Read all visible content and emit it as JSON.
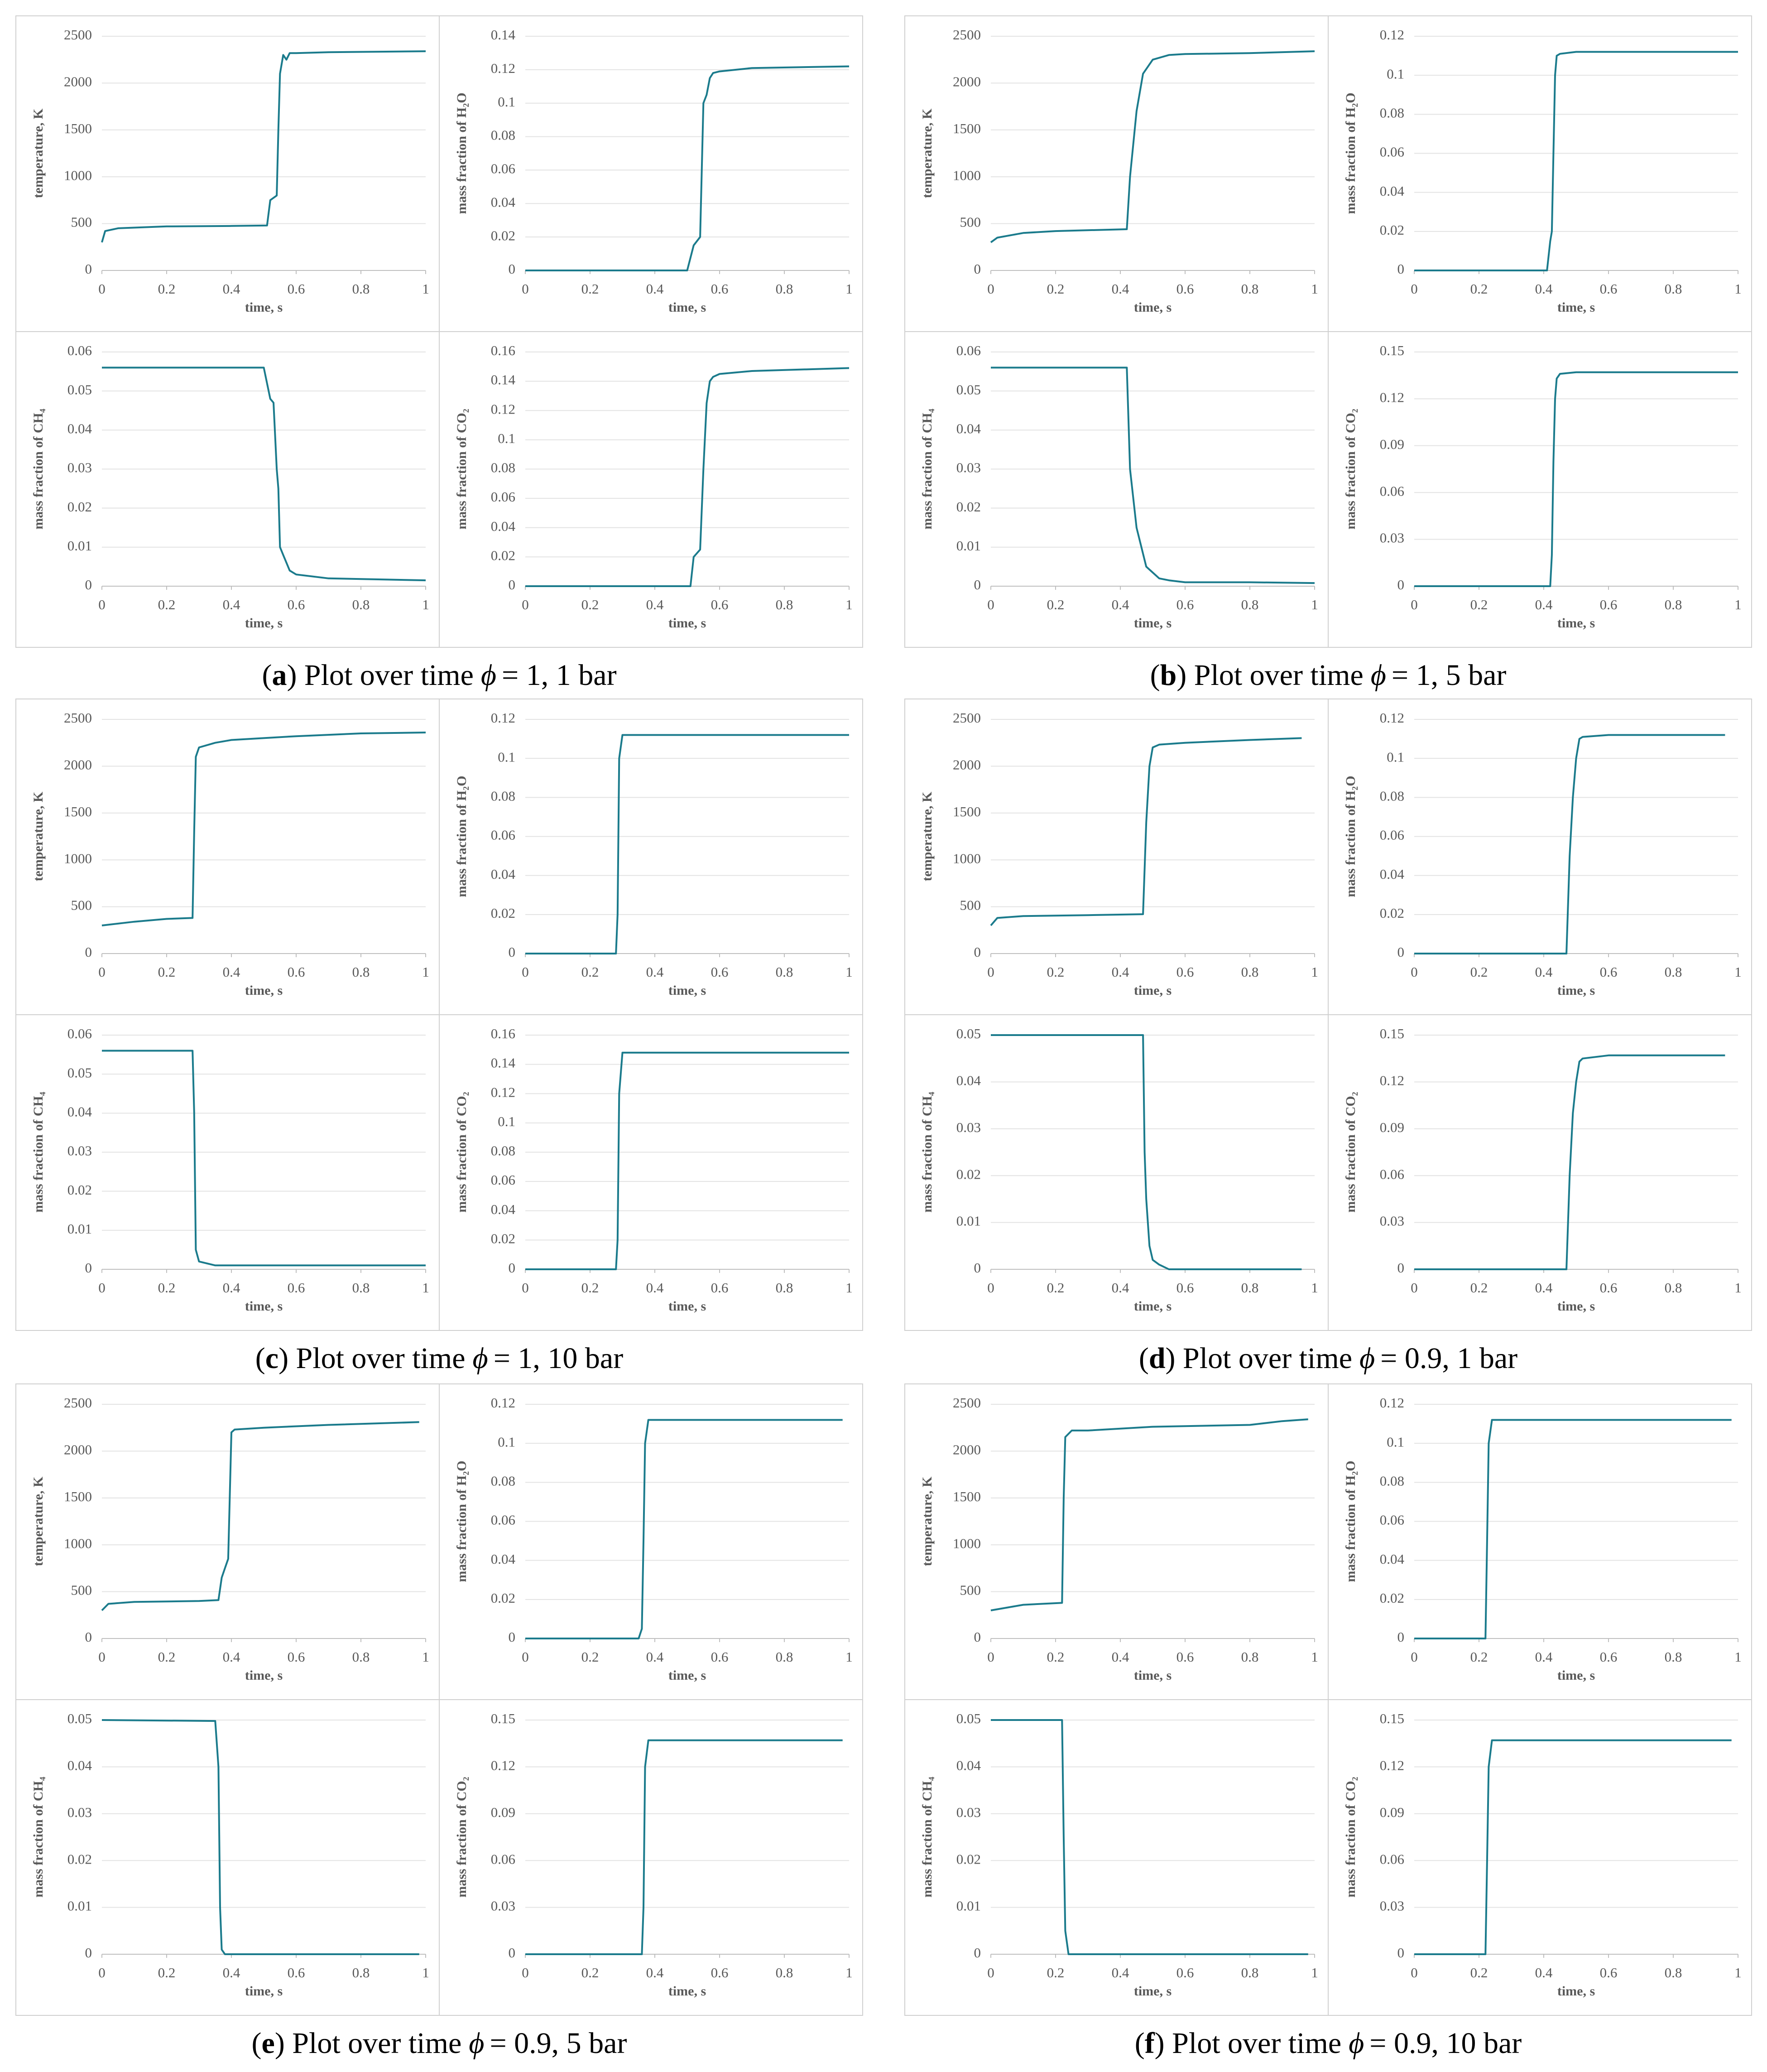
{
  "captions": [
    {
      "open": "(",
      "letter": "a",
      "text": ") Plot over time",
      "symbol": "ϕ",
      "condition": "= 1, 1 bar"
    },
    {
      "open": "(",
      "letter": "b",
      "text": ") Plot over time",
      "symbol": "ϕ",
      "condition": "= 1, 5 bar"
    },
    {
      "open": "(",
      "letter": "c",
      "text": ") Plot over time",
      "symbol": "ϕ",
      "condition": "= 1, 10 bar"
    },
    {
      "open": "(",
      "letter": "d",
      "text": ") Plot over time",
      "symbol": "ϕ",
      "condition": "= 0.9, 1 bar"
    },
    {
      "open": "(",
      "letter": "e",
      "text": ") Plot over time",
      "symbol": "ϕ",
      "condition": "= 0.9, 5 bar"
    },
    {
      "open": "(",
      "letter": "f",
      "text": ") Plot over time",
      "symbol": "ϕ",
      "condition": "= 0.9, 10 bar"
    }
  ],
  "chart_data": [
    {
      "type": "line",
      "xlabel": "time, s",
      "ylabel": "temperature, K",
      "color": "#1b7b8c",
      "grid": true,
      "x": [
        0,
        0.01,
        0.05,
        0.2,
        0.4,
        0.51,
        0.52,
        0.54,
        0.545,
        0.55,
        0.56,
        0.57,
        0.58,
        0.6,
        0.7,
        1
      ],
      "values": [
        300,
        420,
        450,
        470,
        475,
        480,
        750,
        800,
        1500,
        2100,
        2300,
        2250,
        2320,
        2320,
        2330,
        2340
      ],
      "xlim": [
        0,
        1
      ],
      "xticks": [
        0,
        0.2,
        0.4,
        0.6,
        0.8,
        1
      ],
      "ylim": [
        0,
        2500
      ],
      "yticks": [
        0,
        500,
        1000,
        1500,
        2000,
        2500
      ]
    },
    {
      "type": "line",
      "xlabel": "time, s",
      "ylabel": "mass fraction of H₂O",
      "color": "#1b7b8c",
      "grid": true,
      "x": [
        0,
        0.5,
        0.52,
        0.54,
        0.545,
        0.55,
        0.56,
        0.57,
        0.58,
        0.6,
        0.7,
        1
      ],
      "values": [
        0,
        0,
        0.015,
        0.02,
        0.06,
        0.1,
        0.105,
        0.115,
        0.118,
        0.119,
        0.121,
        0.122
      ],
      "xlim": [
        0,
        1
      ],
      "xticks": [
        0,
        0.2,
        0.4,
        0.6,
        0.8,
        1
      ],
      "ylim": [
        0,
        0.14
      ],
      "yticks": [
        0,
        0.02,
        0.04,
        0.06,
        0.08,
        0.1,
        0.12,
        0.14
      ]
    },
    {
      "type": "line",
      "xlabel": "time, s",
      "ylabel": "mass fraction of CH₄",
      "color": "#1b7b8c",
      "grid": true,
      "x": [
        0,
        0.5,
        0.52,
        0.53,
        0.54,
        0.545,
        0.55,
        0.56,
        0.58,
        0.6,
        0.7,
        1
      ],
      "values": [
        0.056,
        0.056,
        0.048,
        0.047,
        0.03,
        0.025,
        0.01,
        0.008,
        0.004,
        0.003,
        0.002,
        0.0015
      ],
      "xlim": [
        0,
        1
      ],
      "xticks": [
        0,
        0.2,
        0.4,
        0.6,
        0.8,
        1
      ],
      "ylim": [
        0,
        0.06
      ],
      "yticks": [
        0,
        0.01,
        0.02,
        0.03,
        0.04,
        0.05,
        0.06
      ]
    },
    {
      "type": "line",
      "xlabel": "time, s",
      "ylabel": "mass fraction of CO₂",
      "color": "#1b7b8c",
      "grid": true,
      "x": [
        0,
        0.51,
        0.52,
        0.54,
        0.55,
        0.56,
        0.57,
        0.58,
        0.6,
        0.7,
        1
      ],
      "values": [
        0,
        0,
        0.02,
        0.025,
        0.08,
        0.125,
        0.14,
        0.143,
        0.145,
        0.147,
        0.149
      ],
      "xlim": [
        0,
        1
      ],
      "xticks": [
        0,
        0.2,
        0.4,
        0.6,
        0.8,
        1
      ],
      "ylim": [
        0,
        0.16
      ],
      "yticks": [
        0,
        0.02,
        0.04,
        0.06,
        0.08,
        0.1,
        0.12,
        0.14,
        0.16
      ]
    },
    {
      "type": "line",
      "xlabel": "time, s",
      "ylabel": "temperature, K",
      "color": "#1b7b8c",
      "grid": true,
      "x": [
        0,
        0.02,
        0.1,
        0.2,
        0.42,
        0.43,
        0.45,
        0.47,
        0.5,
        0.55,
        0.6,
        0.8,
        1
      ],
      "values": [
        300,
        350,
        400,
        420,
        440,
        1000,
        1700,
        2100,
        2250,
        2300,
        2310,
        2320,
        2340
      ],
      "xlim": [
        0,
        1
      ],
      "xticks": [
        0,
        0.2,
        0.4,
        0.6,
        0.8,
        1
      ],
      "ylim": [
        0,
        2500
      ],
      "yticks": [
        0,
        500,
        1000,
        1500,
        2000,
        2500
      ]
    },
    {
      "type": "line",
      "xlabel": "time, s",
      "ylabel": "mass fraction of H₂O",
      "color": "#1b7b8c",
      "grid": true,
      "x": [
        0,
        0.41,
        0.42,
        0.425,
        0.43,
        0.435,
        0.44,
        0.45,
        0.5,
        1
      ],
      "values": [
        0,
        0,
        0.015,
        0.02,
        0.06,
        0.1,
        0.11,
        0.111,
        0.112,
        0.112
      ],
      "xlim": [
        0,
        1
      ],
      "xticks": [
        0,
        0.2,
        0.4,
        0.6,
        0.8,
        1
      ],
      "ylim": [
        0,
        0.12
      ],
      "yticks": [
        0,
        0.02,
        0.04,
        0.06,
        0.08,
        0.1,
        0.12
      ]
    },
    {
      "type": "line",
      "xlabel": "time, s",
      "ylabel": "mass fraction of CH₄",
      "color": "#1b7b8c",
      "grid": true,
      "x": [
        0,
        0.42,
        0.43,
        0.45,
        0.48,
        0.52,
        0.55,
        0.6,
        0.8,
        1
      ],
      "values": [
        0.056,
        0.056,
        0.03,
        0.015,
        0.005,
        0.002,
        0.0015,
        0.001,
        0.001,
        0.0008
      ],
      "xlim": [
        0,
        1
      ],
      "xticks": [
        0,
        0.2,
        0.4,
        0.6,
        0.8,
        1
      ],
      "ylim": [
        0,
        0.06
      ],
      "yticks": [
        0,
        0.01,
        0.02,
        0.03,
        0.04,
        0.05,
        0.06
      ]
    },
    {
      "type": "line",
      "xlabel": "time, s",
      "ylabel": "mass fraction of CO₂",
      "color": "#1b7b8c",
      "grid": true,
      "x": [
        0,
        0.42,
        0.425,
        0.43,
        0.435,
        0.44,
        0.45,
        0.5,
        1
      ],
      "values": [
        0,
        0,
        0.02,
        0.08,
        0.12,
        0.133,
        0.136,
        0.137,
        0.137
      ],
      "xlim": [
        0,
        1
      ],
      "xticks": [
        0,
        0.2,
        0.4,
        0.6,
        0.8,
        1
      ],
      "ylim": [
        0,
        0.15
      ],
      "yticks": [
        0,
        0.03,
        0.06,
        0.09,
        0.12,
        0.15
      ]
    },
    {
      "type": "line",
      "xlabel": "time, s",
      "ylabel": "temperature, K",
      "color": "#1b7b8c",
      "grid": true,
      "x": [
        0,
        0.1,
        0.2,
        0.28,
        0.285,
        0.29,
        0.3,
        0.35,
        0.4,
        0.6,
        0.8,
        1
      ],
      "values": [
        300,
        340,
        370,
        380,
        1300,
        2100,
        2200,
        2250,
        2280,
        2320,
        2350,
        2360
      ],
      "xlim": [
        0,
        1
      ],
      "xticks": [
        0,
        0.2,
        0.4,
        0.6,
        0.8,
        1
      ],
      "ylim": [
        0,
        2500
      ],
      "yticks": [
        0,
        500,
        1000,
        1500,
        2000,
        2500
      ]
    },
    {
      "type": "line",
      "xlabel": "time, s",
      "ylabel": "mass fraction of H₂O",
      "color": "#1b7b8c",
      "grid": true,
      "x": [
        0,
        0.28,
        0.285,
        0.29,
        0.3,
        1
      ],
      "values": [
        0,
        0,
        0.02,
        0.1,
        0.112,
        0.112
      ],
      "xlim": [
        0,
        1
      ],
      "xticks": [
        0,
        0.2,
        0.4,
        0.6,
        0.8,
        1
      ],
      "ylim": [
        0,
        0.12
      ],
      "yticks": [
        0,
        0.02,
        0.04,
        0.06,
        0.08,
        0.1,
        0.12
      ]
    },
    {
      "type": "line",
      "xlabel": "time, s",
      "ylabel": "mass fraction of CH₄",
      "color": "#1b7b8c",
      "grid": true,
      "x": [
        0,
        0.28,
        0.285,
        0.29,
        0.3,
        0.35,
        1
      ],
      "values": [
        0.056,
        0.056,
        0.04,
        0.005,
        0.002,
        0.001,
        0.001
      ],
      "xlim": [
        0,
        1
      ],
      "xticks": [
        0,
        0.2,
        0.4,
        0.6,
        0.8,
        1
      ],
      "ylim": [
        0,
        0.06
      ],
      "yticks": [
        0,
        0.01,
        0.02,
        0.03,
        0.04,
        0.05,
        0.06
      ]
    },
    {
      "type": "line",
      "xlabel": "time, s",
      "ylabel": "mass fraction of CO₂",
      "color": "#1b7b8c",
      "grid": true,
      "x": [
        0,
        0.28,
        0.285,
        0.29,
        0.3,
        1
      ],
      "values": [
        0,
        0,
        0.02,
        0.12,
        0.148,
        0.148
      ],
      "xlim": [
        0,
        1
      ],
      "xticks": [
        0,
        0.2,
        0.4,
        0.6,
        0.8,
        1
      ],
      "ylim": [
        0,
        0.16
      ],
      "yticks": [
        0,
        0.02,
        0.04,
        0.06,
        0.08,
        0.1,
        0.12,
        0.14,
        0.16
      ]
    },
    {
      "type": "line",
      "xlabel": "time, s",
      "ylabel": "temperature, K",
      "color": "#1b7b8c",
      "grid": true,
      "x": [
        0,
        0.02,
        0.1,
        0.3,
        0.47,
        0.48,
        0.49,
        0.5,
        0.52,
        0.6,
        0.8,
        0.96
      ],
      "values": [
        300,
        380,
        400,
        410,
        420,
        1400,
        2000,
        2200,
        2230,
        2250,
        2280,
        2300
      ],
      "xlim": [
        0,
        1
      ],
      "xticks": [
        0,
        0.2,
        0.4,
        0.6,
        0.8,
        1
      ],
      "ylim": [
        0,
        2500
      ],
      "yticks": [
        0,
        500,
        1000,
        1500,
        2000,
        2500
      ]
    },
    {
      "type": "line",
      "xlabel": "time, s",
      "ylabel": "mass fraction of H₂O",
      "color": "#1b7b8c",
      "grid": true,
      "x": [
        0,
        0.47,
        0.48,
        0.49,
        0.5,
        0.51,
        0.52,
        0.6,
        0.96
      ],
      "values": [
        0,
        0,
        0.05,
        0.08,
        0.1,
        0.11,
        0.111,
        0.112,
        0.112
      ],
      "xlim": [
        0,
        1
      ],
      "xticks": [
        0,
        0.2,
        0.4,
        0.6,
        0.8,
        1
      ],
      "ylim": [
        0,
        0.12
      ],
      "yticks": [
        0,
        0.02,
        0.04,
        0.06,
        0.08,
        0.1,
        0.12
      ]
    },
    {
      "type": "line",
      "xlabel": "time, s",
      "ylabel": "mass fraction of CH₄",
      "color": "#1b7b8c",
      "grid": true,
      "x": [
        0,
        0.47,
        0.475,
        0.48,
        0.49,
        0.5,
        0.52,
        0.55,
        0.96
      ],
      "values": [
        0.05,
        0.05,
        0.025,
        0.015,
        0.005,
        0.002,
        0.001,
        0,
        0
      ],
      "xlim": [
        0,
        1
      ],
      "xticks": [
        0,
        0.2,
        0.4,
        0.6,
        0.8,
        1
      ],
      "ylim": [
        0,
        0.05
      ],
      "yticks": [
        0,
        0.01,
        0.02,
        0.03,
        0.04,
        0.05
      ]
    },
    {
      "type": "line",
      "xlabel": "time, s",
      "ylabel": "mass fraction of CO₂",
      "color": "#1b7b8c",
      "grid": true,
      "x": [
        0,
        0.47,
        0.48,
        0.49,
        0.5,
        0.51,
        0.52,
        0.6,
        0.96
      ],
      "values": [
        0,
        0,
        0.06,
        0.1,
        0.12,
        0.133,
        0.135,
        0.137,
        0.137
      ],
      "xlim": [
        0,
        1
      ],
      "xticks": [
        0,
        0.2,
        0.4,
        0.6,
        0.8,
        1
      ],
      "ylim": [
        0,
        0.15
      ],
      "yticks": [
        0,
        0.03,
        0.06,
        0.09,
        0.12,
        0.15
      ]
    },
    {
      "type": "line",
      "xlabel": "time, s",
      "ylabel": "temperature, K",
      "color": "#1b7b8c",
      "grid": true,
      "x": [
        0,
        0.02,
        0.1,
        0.3,
        0.36,
        0.37,
        0.38,
        0.39,
        0.4,
        0.41,
        0.5,
        0.7,
        0.98
      ],
      "values": [
        300,
        370,
        390,
        400,
        410,
        650,
        750,
        850,
        2200,
        2230,
        2250,
        2280,
        2310
      ],
      "xlim": [
        0,
        1
      ],
      "xticks": [
        0,
        0.2,
        0.4,
        0.6,
        0.8,
        1
      ],
      "ylim": [
        0,
        2500
      ],
      "yticks": [
        0,
        500,
        1000,
        1500,
        2000,
        2500
      ]
    },
    {
      "type": "line",
      "xlabel": "time, s",
      "ylabel": "mass fraction of H₂O",
      "color": "#1b7b8c",
      "grid": true,
      "x": [
        0,
        0.35,
        0.36,
        0.365,
        0.37,
        0.38,
        0.98
      ],
      "values": [
        0,
        0,
        0.005,
        0.05,
        0.1,
        0.112,
        0.112
      ],
      "xlim": [
        0,
        1
      ],
      "xticks": [
        0,
        0.2,
        0.4,
        0.6,
        0.8,
        1
      ],
      "ylim": [
        0,
        0.12
      ],
      "yticks": [
        0,
        0.02,
        0.04,
        0.06,
        0.08,
        0.1,
        0.12
      ]
    },
    {
      "type": "line",
      "xlabel": "time, s",
      "ylabel": "mass fraction of CH₄",
      "color": "#1b7b8c",
      "grid": true,
      "x": [
        0,
        0.35,
        0.36,
        0.365,
        0.37,
        0.38,
        0.98
      ],
      "values": [
        0.05,
        0.0498,
        0.04,
        0.01,
        0.001,
        0,
        0
      ],
      "xlim": [
        0,
        1
      ],
      "xticks": [
        0,
        0.2,
        0.4,
        0.6,
        0.8,
        1
      ],
      "ylim": [
        0,
        0.05
      ],
      "yticks": [
        0,
        0.01,
        0.02,
        0.03,
        0.04,
        0.05
      ]
    },
    {
      "type": "line",
      "xlabel": "time, s",
      "ylabel": "mass fraction of CO₂",
      "color": "#1b7b8c",
      "grid": true,
      "x": [
        0,
        0.36,
        0.365,
        0.37,
        0.38,
        0.98
      ],
      "values": [
        0,
        0,
        0.03,
        0.12,
        0.137,
        0.137
      ],
      "xlim": [
        0,
        1
      ],
      "xticks": [
        0,
        0.2,
        0.4,
        0.6,
        0.8,
        1
      ],
      "ylim": [
        0,
        0.15
      ],
      "yticks": [
        0,
        0.03,
        0.06,
        0.09,
        0.12,
        0.15
      ]
    },
    {
      "type": "line",
      "xlabel": "time, s",
      "ylabel": "temperature, K",
      "color": "#1b7b8c",
      "grid": true,
      "x": [
        0,
        0.1,
        0.22,
        0.225,
        0.23,
        0.25,
        0.3,
        0.5,
        0.8,
        0.9,
        0.98
      ],
      "values": [
        300,
        360,
        380,
        1500,
        2150,
        2220,
        2220,
        2260,
        2280,
        2320,
        2340
      ],
      "xlim": [
        0,
        1
      ],
      "xticks": [
        0,
        0.2,
        0.4,
        0.6,
        0.8,
        1
      ],
      "ylim": [
        0,
        2500
      ],
      "yticks": [
        0,
        500,
        1000,
        1500,
        2000,
        2500
      ]
    },
    {
      "type": "line",
      "xlabel": "time, s",
      "ylabel": "mass fraction of H₂O",
      "color": "#1b7b8c",
      "grid": true,
      "x": [
        0,
        0.22,
        0.225,
        0.23,
        0.24,
        0.98
      ],
      "values": [
        0,
        0,
        0.05,
        0.1,
        0.112,
        0.112
      ],
      "xlim": [
        0,
        1
      ],
      "xticks": [
        0,
        0.2,
        0.4,
        0.6,
        0.8,
        1
      ],
      "ylim": [
        0,
        0.12
      ],
      "yticks": [
        0,
        0.02,
        0.04,
        0.06,
        0.08,
        0.1,
        0.12
      ]
    },
    {
      "type": "line",
      "xlabel": "time, s",
      "ylabel": "mass fraction of CH₄",
      "color": "#1b7b8c",
      "grid": true,
      "x": [
        0,
        0.22,
        0.225,
        0.23,
        0.24,
        0.98
      ],
      "values": [
        0.05,
        0.05,
        0.025,
        0.005,
        0,
        0
      ],
      "xlim": [
        0,
        1
      ],
      "xticks": [
        0,
        0.2,
        0.4,
        0.6,
        0.8,
        1
      ],
      "ylim": [
        0,
        0.05
      ],
      "yticks": [
        0,
        0.01,
        0.02,
        0.03,
        0.04,
        0.05
      ]
    },
    {
      "type": "line",
      "xlabel": "time, s",
      "ylabel": "mass fraction of CO₂",
      "color": "#1b7b8c",
      "grid": true,
      "x": [
        0,
        0.22,
        0.225,
        0.23,
        0.24,
        0.98
      ],
      "values": [
        0,
        0,
        0.06,
        0.12,
        0.137,
        0.137
      ],
      "xlim": [
        0,
        1
      ],
      "xticks": [
        0,
        0.2,
        0.4,
        0.6,
        0.8,
        1
      ],
      "ylim": [
        0,
        0.15
      ],
      "yticks": [
        0,
        0.03,
        0.06,
        0.09,
        0.12,
        0.15
      ]
    }
  ]
}
